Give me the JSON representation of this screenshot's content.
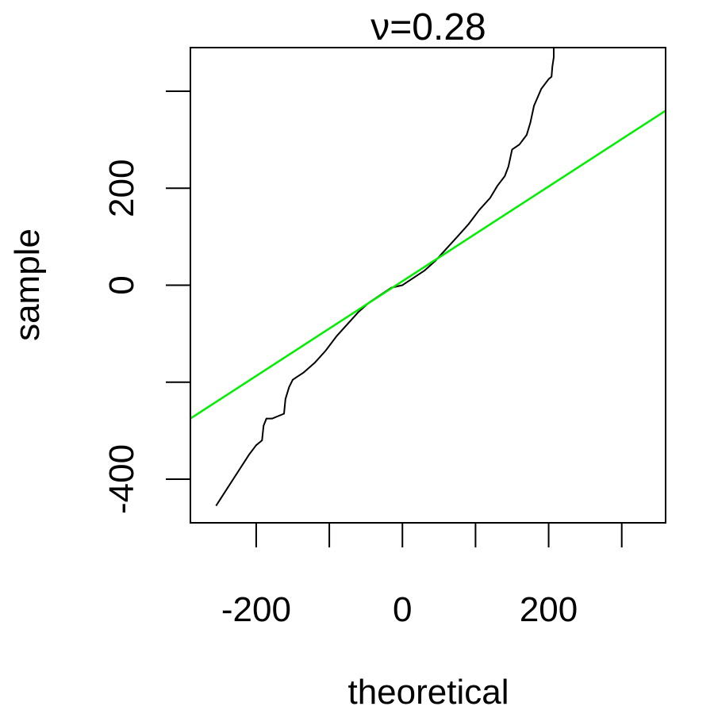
{
  "chart_data": {
    "type": "line",
    "title": "ν=0.28",
    "xlabel": "theoretical",
    "ylabel": "sample",
    "xlim": [
      -290,
      360
    ],
    "ylim": [
      -490,
      490
    ],
    "x_ticks": [
      -200,
      -100,
      0,
      100,
      200,
      300
    ],
    "x_tick_labels": [
      "-200",
      "",
      "0",
      "",
      "200",
      ""
    ],
    "y_ticks": [
      -400,
      -200,
      0,
      200,
      400
    ],
    "y_tick_labels": [
      "-400",
      "",
      "0",
      "200",
      ""
    ],
    "grid": false,
    "series": [
      {
        "color": "#000000",
        "x": [
          -255,
          -240,
          -225,
          -210,
          -200,
          -192,
          -190,
          -186,
          -184,
          -178,
          -170,
          -162,
          -160,
          -155,
          -150,
          -145,
          -135,
          -120,
          -105,
          -90,
          -75,
          -60,
          -45,
          -30,
          -15,
          0,
          15,
          30,
          45,
          60,
          75,
          90,
          105,
          120,
          130,
          140,
          145,
          150,
          160,
          170,
          175,
          180,
          190,
          200,
          204,
          205,
          207,
          207
        ],
        "y": [
          -455,
          -420,
          -385,
          -350,
          -330,
          -320,
          -290,
          -275,
          -275,
          -275,
          -270,
          -265,
          -235,
          -210,
          -195,
          -190,
          -180,
          -160,
          -135,
          -105,
          -80,
          -55,
          -35,
          -20,
          -5,
          0,
          15,
          30,
          50,
          75,
          100,
          125,
          155,
          180,
          205,
          225,
          245,
          280,
          290,
          310,
          335,
          370,
          405,
          425,
          430,
          450,
          470,
          490
        ]
      },
      {
        "color": "#00ee00",
        "x": [
          -290,
          360
        ],
        "y": [
          -275,
          360
        ]
      }
    ]
  }
}
